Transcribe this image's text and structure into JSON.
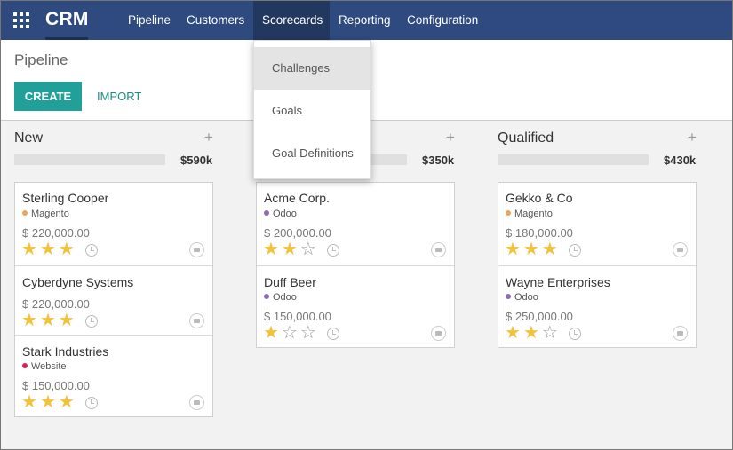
{
  "app": {
    "name": "CRM"
  },
  "nav": {
    "items": [
      {
        "label": "Pipeline"
      },
      {
        "label": "Customers"
      },
      {
        "label": "Scorecards"
      },
      {
        "label": "Reporting"
      },
      {
        "label": "Configuration"
      }
    ],
    "active": "Scorecards"
  },
  "dropdown": {
    "items": [
      {
        "label": "Challenges"
      },
      {
        "label": "Goals"
      },
      {
        "label": "Goal Definitions"
      }
    ]
  },
  "control_panel": {
    "title": "Pipeline",
    "create_label": "CREATE",
    "import_label": "IMPORT"
  },
  "colors": {
    "navbar": "#2e4a7e",
    "accent": "#21a09a",
    "star": "#f2c23c",
    "tag_magento": "#f0a35a",
    "tag_odoo": "#8e6bb8",
    "tag_website": "#d9234f"
  },
  "columns": [
    {
      "title": "New",
      "total": "$590k",
      "plus": "+",
      "cards": [
        {
          "name": "Sterling Cooper",
          "tag": "Magento",
          "amount": "$ 220,000.00",
          "stars": 3
        },
        {
          "name": "Cyberdyne Systems",
          "tag": "",
          "amount": "$ 220,000.00",
          "stars": 3
        },
        {
          "name": "Stark Industries",
          "tag": "Website",
          "amount": "$ 150,000.00",
          "stars": 3
        }
      ]
    },
    {
      "title": "",
      "total": "$350k",
      "plus": "+",
      "cards": [
        {
          "name": "Acme Corp.",
          "tag": "Odoo",
          "amount": "$ 200,000.00",
          "stars": 2
        },
        {
          "name": "Duff Beer",
          "tag": "Odoo",
          "amount": "$ 150,000.00",
          "stars": 1
        }
      ]
    },
    {
      "title": "Qualified",
      "total": "$430k",
      "plus": "+",
      "cards": [
        {
          "name": "Gekko & Co",
          "tag": "Magento",
          "amount": "$ 180,000.00",
          "stars": 3
        },
        {
          "name": "Wayne Enterprises",
          "tag": "Odoo",
          "amount": "$ 250,000.00",
          "stars": 2
        }
      ]
    }
  ],
  "icons": {
    "apps": "apps-grid-icon",
    "star": "star-icon",
    "activity": "clock-icon",
    "avatar": "camera-icon"
  }
}
